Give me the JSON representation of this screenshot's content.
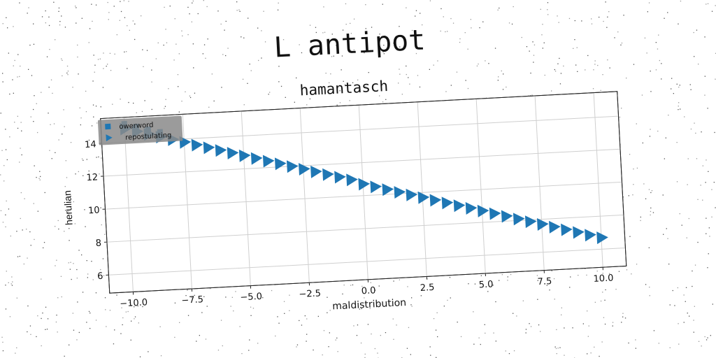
{
  "figure": {
    "suptitle": "L antipot"
  },
  "chart_data": {
    "type": "scatter",
    "title": "hamantasch",
    "xlabel": "maldistribution",
    "ylabel": "herulian",
    "xlim": [
      -11.0,
      11.0
    ],
    "ylim": [
      4.9,
      15.5
    ],
    "xticks": [
      -10.0,
      -7.5,
      -5.0,
      -2.5,
      0.0,
      2.5,
      5.0,
      7.5,
      10.0
    ],
    "xtick_labels": [
      "−10.0",
      "−7.5",
      "−5.0",
      "−2.5",
      "0.0",
      "2.5",
      "5.0",
      "7.5",
      "10.0"
    ],
    "yticks": [
      6,
      8,
      10,
      12,
      14
    ],
    "ytick_labels": [
      "6",
      "8",
      "10",
      "12",
      "14"
    ],
    "grid": true,
    "legend_position": "upper-left",
    "series": [
      {
        "name": "owerword",
        "marker": "square",
        "color": "#1f77b4",
        "x": [
          -10.0,
          -9.5,
          -9.0,
          -8.5
        ],
        "y": [
          15.1,
          14.9,
          14.7,
          14.5
        ]
      },
      {
        "name": "repostulating",
        "marker": "triangle-right",
        "color": "#1f77b4",
        "x": [
          -10.0,
          -9.5,
          -9.0,
          -8.5,
          -8.0,
          -7.5,
          -7.0,
          -6.5,
          -6.0,
          -5.5,
          -5.0,
          -4.5,
          -4.0,
          -3.5,
          -3.0,
          -2.5,
          -2.0,
          -1.5,
          -1.0,
          -0.5,
          0.0,
          0.5,
          1.0,
          1.5,
          2.0,
          2.5,
          3.0,
          3.5,
          4.0,
          4.5,
          5.0,
          5.5,
          6.0,
          6.5,
          7.0,
          7.5,
          8.0,
          8.5,
          9.0,
          9.5,
          10.0
        ],
        "y": [
          14.8,
          14.6,
          14.4,
          14.2,
          14.0,
          13.8,
          13.6,
          13.4,
          13.2,
          13.0,
          12.8,
          12.6,
          12.4,
          12.2,
          12.0,
          11.8,
          11.6,
          11.4,
          11.2,
          11.0,
          10.7,
          10.5,
          10.3,
          10.1,
          9.9,
          9.7,
          9.5,
          9.3,
          9.1,
          8.9,
          8.7,
          8.5,
          8.3,
          8.1,
          7.9,
          7.7,
          7.5,
          7.3,
          7.1,
          6.9,
          6.7
        ]
      }
    ]
  }
}
